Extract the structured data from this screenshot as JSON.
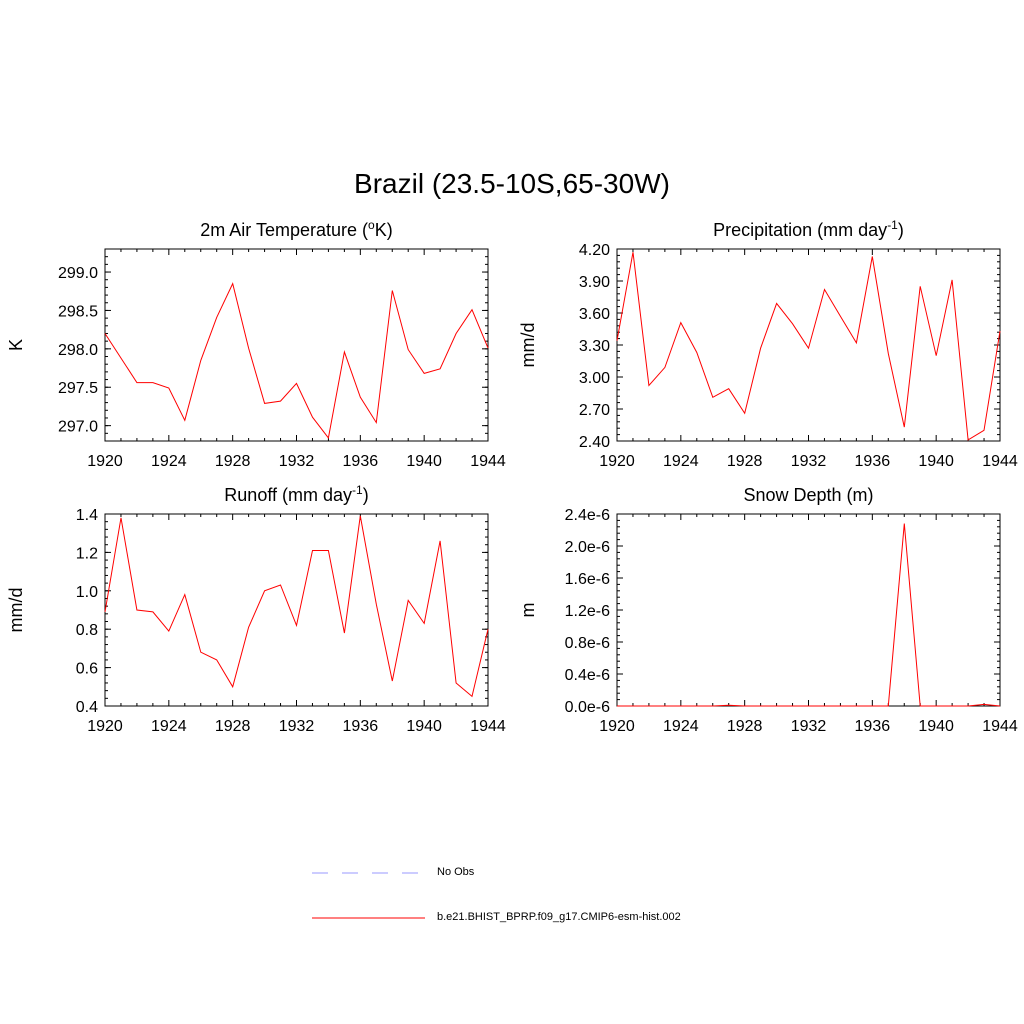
{
  "title": "Brazil (23.5-10S,65-30W)",
  "chart_data": [
    {
      "type": "line",
      "title": "2m Air Temperature (",
      "title_sup": "o",
      "title_after": "K)",
      "ylabel": "K",
      "x": [
        1920,
        1921,
        1922,
        1923,
        1924,
        1925,
        1926,
        1927,
        1928,
        1929,
        1930,
        1931,
        1932,
        1933,
        1934,
        1935,
        1936,
        1937,
        1938,
        1939,
        1940,
        1941,
        1942,
        1943,
        1944
      ],
      "values": [
        298.2,
        297.88,
        297.56,
        297.56,
        297.49,
        297.07,
        297.85,
        298.41,
        298.85,
        298.01,
        297.29,
        297.32,
        297.55,
        297.11,
        296.84,
        297.96,
        297.37,
        297.04,
        298.76,
        297.99,
        297.68,
        297.74,
        298.2,
        298.51,
        298.01
      ],
      "xlim": [
        1920,
        1944
      ],
      "ylim": [
        296.8,
        299.3
      ],
      "xticks": [
        "1920",
        "1924",
        "1928",
        "1932",
        "1936",
        "1940",
        "1944"
      ],
      "yticks": [
        "297.0",
        "297.5",
        "298.0",
        "298.5",
        "299.0"
      ],
      "line_color": "#ff0000"
    },
    {
      "type": "line",
      "title": "Precipitation (mm day",
      "title_sup": "-1",
      "title_after": ")",
      "ylabel": "mm/d",
      "x": [
        1920,
        1921,
        1922,
        1923,
        1924,
        1925,
        1926,
        1927,
        1928,
        1929,
        1930,
        1931,
        1932,
        1933,
        1934,
        1935,
        1936,
        1937,
        1938,
        1939,
        1940,
        1941,
        1942,
        1943,
        1944
      ],
      "values": [
        3.34,
        4.17,
        2.92,
        3.09,
        3.51,
        3.23,
        2.81,
        2.89,
        2.66,
        3.27,
        3.69,
        3.5,
        3.27,
        3.82,
        3.57,
        3.32,
        4.13,
        3.22,
        2.53,
        3.85,
        3.2,
        3.91,
        2.41,
        2.5,
        3.43
      ],
      "xlim": [
        1920,
        1944
      ],
      "ylim": [
        2.4,
        4.2
      ],
      "xticks": [
        "1920",
        "1924",
        "1928",
        "1932",
        "1936",
        "1940",
        "1944"
      ],
      "yticks": [
        "2.40",
        "2.70",
        "3.00",
        "3.30",
        "3.60",
        "3.90",
        "4.20"
      ],
      "line_color": "#ff0000"
    },
    {
      "type": "line",
      "title": "Runoff (mm day",
      "title_sup": "-1",
      "title_after": ")",
      "ylabel": "mm/d",
      "x": [
        1920,
        1921,
        1922,
        1923,
        1924,
        1925,
        1926,
        1927,
        1928,
        1929,
        1930,
        1931,
        1932,
        1933,
        1934,
        1935,
        1936,
        1937,
        1938,
        1939,
        1940,
        1941,
        1942,
        1943,
        1944
      ],
      "values": [
        0.89,
        1.38,
        0.9,
        0.89,
        0.79,
        0.98,
        0.68,
        0.64,
        0.5,
        0.81,
        1.0,
        1.03,
        0.82,
        1.21,
        1.21,
        0.78,
        1.39,
        0.93,
        0.53,
        0.95,
        0.83,
        1.26,
        0.52,
        0.45,
        0.8
      ],
      "xlim": [
        1920,
        1944
      ],
      "ylim": [
        0.4,
        1.4
      ],
      "xticks": [
        "1920",
        "1924",
        "1928",
        "1932",
        "1936",
        "1940",
        "1944"
      ],
      "yticks": [
        "0.4",
        "0.6",
        "0.8",
        "1.0",
        "1.2",
        "1.4"
      ],
      "line_color": "#ff0000"
    },
    {
      "type": "line",
      "title": "Snow Depth (m)",
      "title_sup": "",
      "title_after": "",
      "ylabel": "m",
      "x": [
        1920,
        1921,
        1922,
        1923,
        1924,
        1925,
        1926,
        1927,
        1928,
        1929,
        1930,
        1931,
        1932,
        1933,
        1934,
        1935,
        1936,
        1937,
        1938,
        1939,
        1940,
        1941,
        1942,
        1943,
        1944
      ],
      "values": [
        0,
        0,
        0,
        0,
        0,
        0,
        0,
        1e-08,
        0,
        0,
        0,
        0,
        0,
        0,
        0,
        0,
        0,
        0,
        2.28e-06,
        0,
        0,
        0,
        0,
        2e-08,
        0
      ],
      "xlim": [
        1920,
        1944
      ],
      "ylim": [
        0,
        2.4e-06
      ],
      "xticks": [
        "1920",
        "1924",
        "1928",
        "1932",
        "1936",
        "1940",
        "1944"
      ],
      "yticks": [
        "0.0e-6",
        "0.4e-6",
        "0.8e-6",
        "1.2e-6",
        "1.6e-6",
        "2.0e-6",
        "2.4e-6"
      ],
      "line_color": "#ff0000"
    }
  ],
  "legend": {
    "items": [
      {
        "label": "No Obs",
        "color": "#9999ff",
        "style": "dashed"
      },
      {
        "label": "b.e21.BHIST_BPRP.f09_g17.CMIP6-esm-hist.002",
        "color": "#ff0000",
        "style": "solid"
      }
    ]
  }
}
